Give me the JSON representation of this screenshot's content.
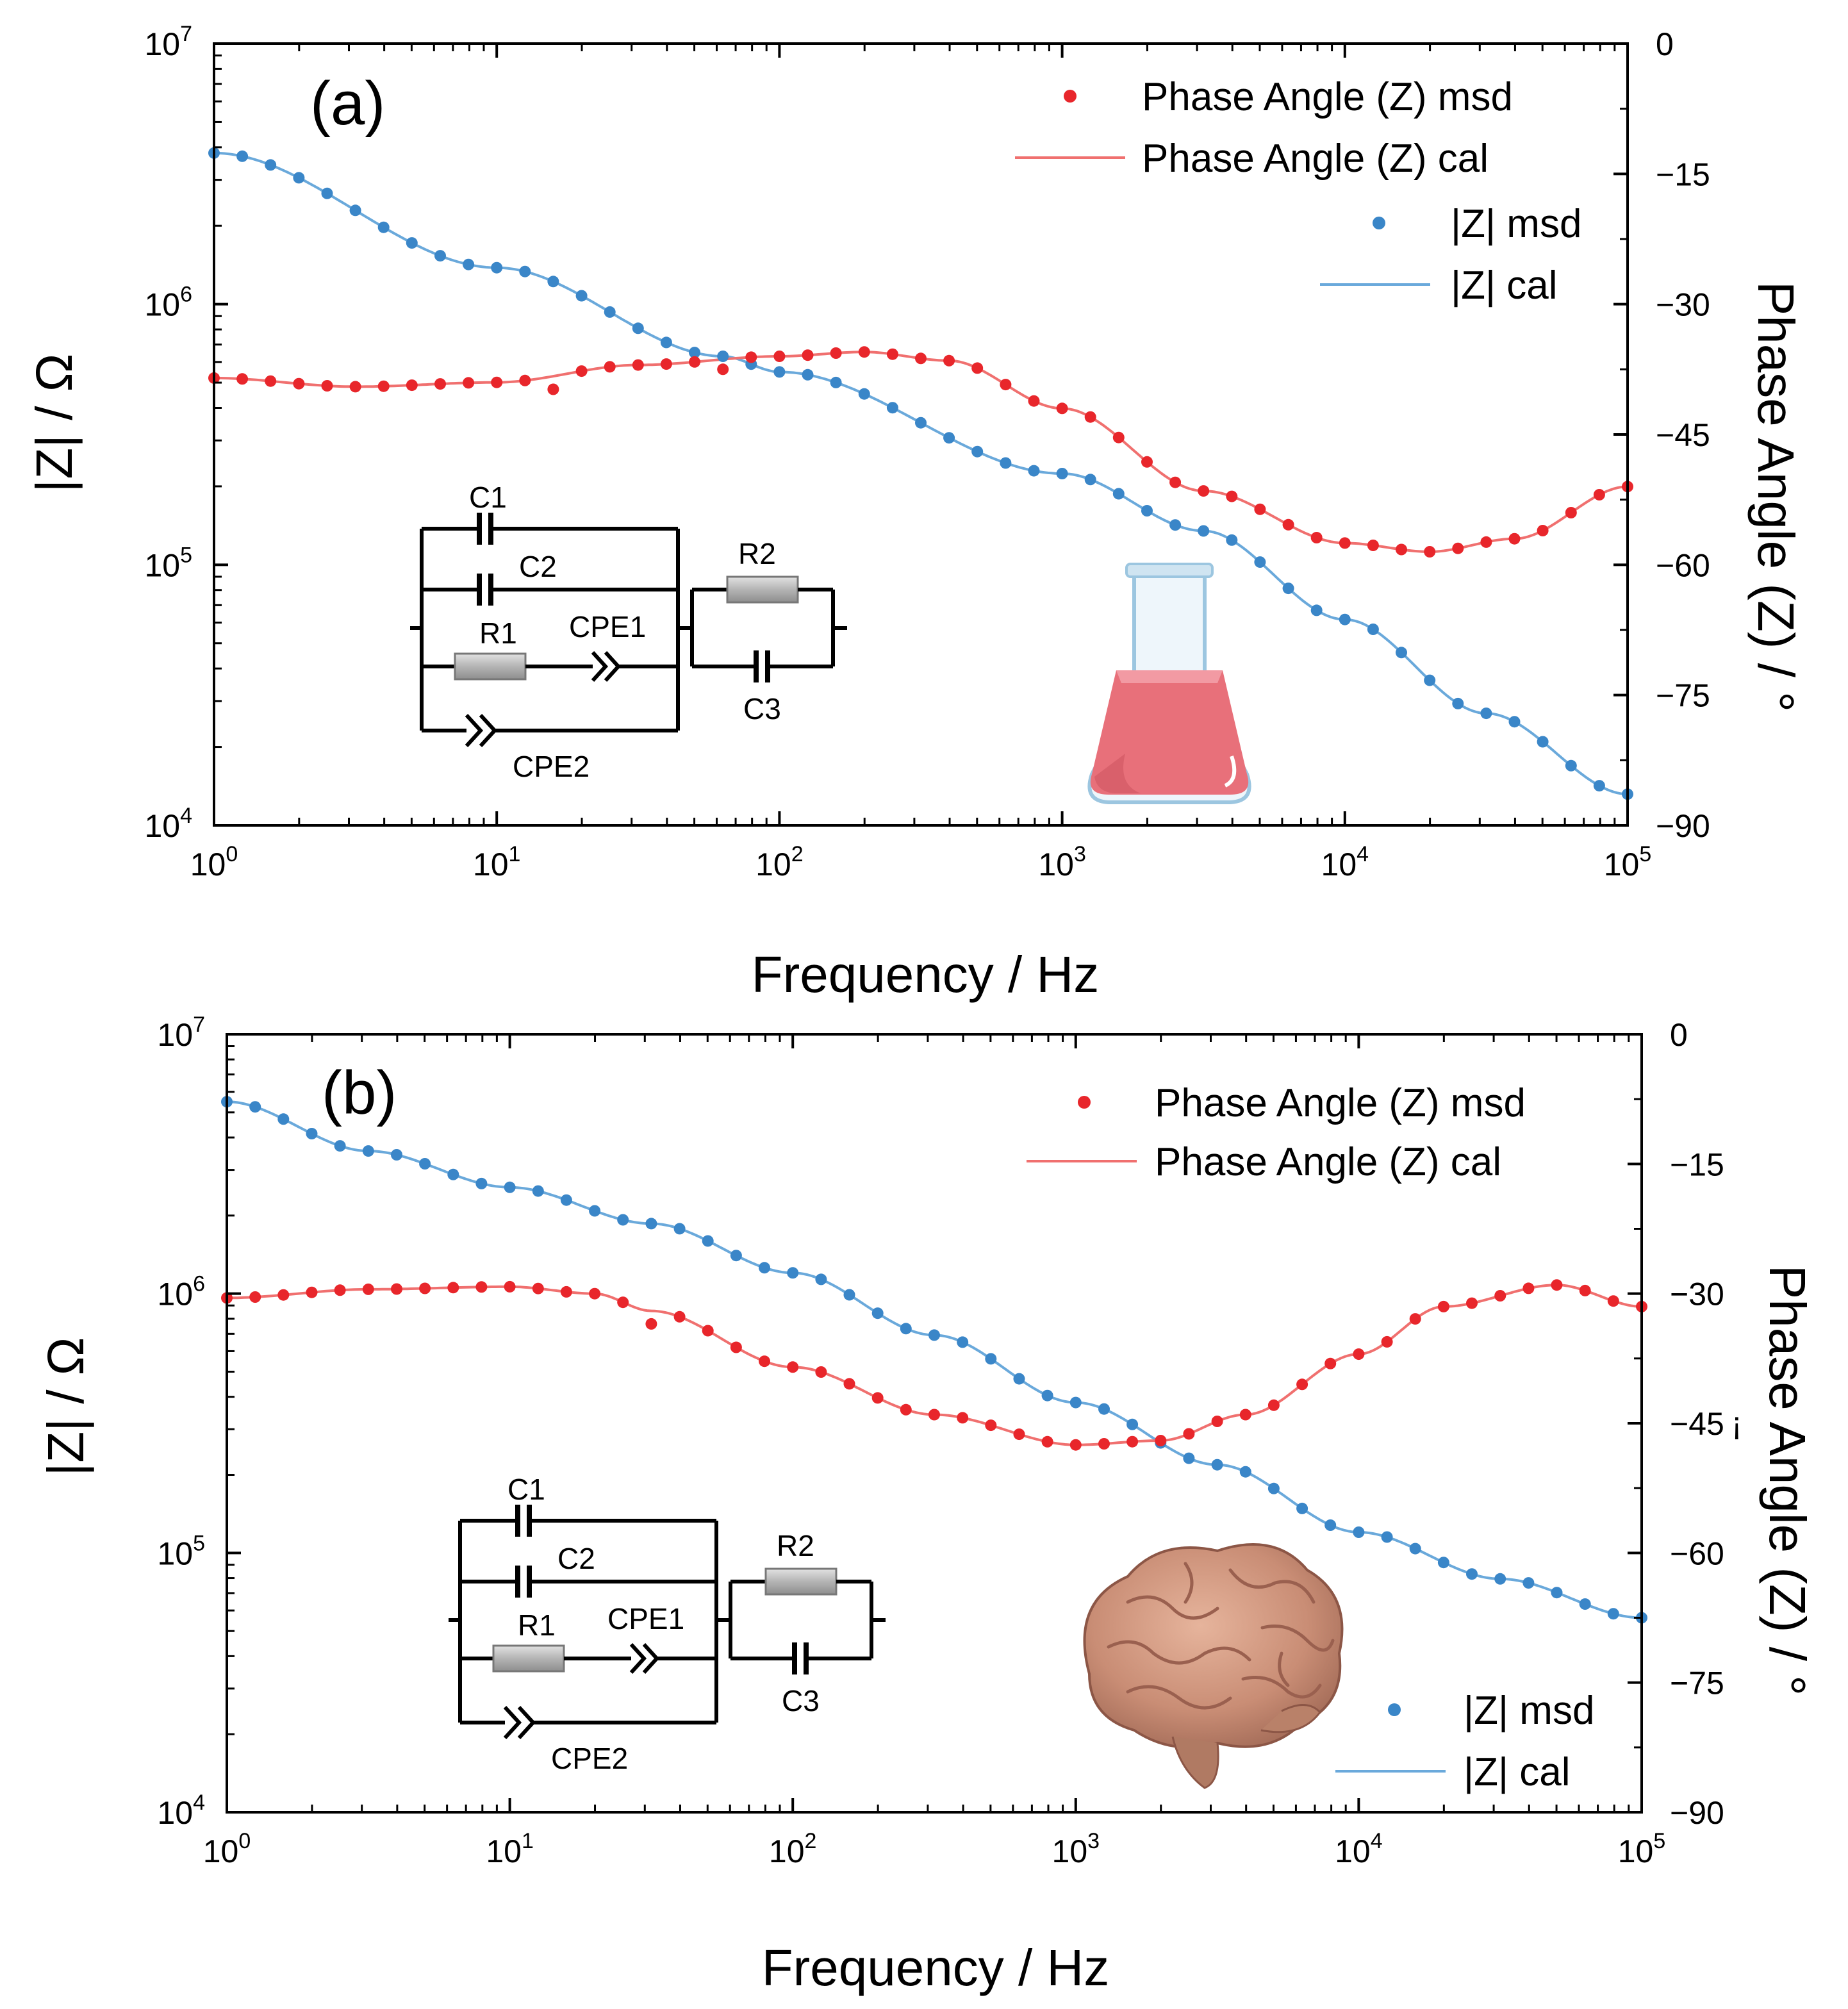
{
  "figure": {
    "colors": {
      "phase": "#e8262b",
      "phase_line": "#f0706f",
      "modulus": "#3a86c8",
      "modulus_line": "#6aa9db",
      "axis": "#000000"
    }
  },
  "chart_data": [
    {
      "type": "line",
      "panel_label": "(a)",
      "title": "",
      "xlabel": "Frequency / Hz",
      "ylabel": "|Z| / Ω",
      "y2label": "Phase Angle (Z) / °",
      "xscale": "log",
      "xlim": [
        1,
        100000
      ],
      "yscale": "log",
      "ylim": [
        10000,
        10000000
      ],
      "y2lim": [
        -90,
        0
      ],
      "x_ticks": [
        {
          "b": "10",
          "e": "0"
        },
        {
          "b": "10",
          "e": "1"
        },
        {
          "b": "10",
          "e": "2"
        },
        {
          "b": "10",
          "e": "3"
        },
        {
          "b": "10",
          "e": "4"
        },
        {
          "b": "10",
          "e": "5"
        }
      ],
      "y_ticks": [
        {
          "b": "10",
          "e": "4"
        },
        {
          "b": "10",
          "e": "5"
        },
        {
          "b": "10",
          "e": "6"
        },
        {
          "b": "10",
          "e": "7"
        }
      ],
      "y2_ticks": [
        "0",
        "−15",
        "−30",
        "−45",
        "−60",
        "−75",
        "−90"
      ],
      "legend_position": "top-right",
      "legend": [
        {
          "name": "Phase Angle (Z) msd",
          "kind": "marker",
          "color": "#e8262b"
        },
        {
          "name": "Phase Angle (Z)  cal",
          "kind": "line",
          "color": "#f0706f"
        },
        {
          "name": "|Z| msd",
          "kind": "marker",
          "color": "#3a86c8"
        },
        {
          "name": "|Z| cal",
          "kind": "line",
          "color": "#6aa9db"
        }
      ],
      "series": [
        {
          "name": "|Z|",
          "axis": "left",
          "knots_log_f": [
            0,
            1,
            1.8,
            2,
            3,
            3.5,
            4,
            4.5,
            5
          ],
          "knots_log_z": [
            6.58,
            6.14,
            5.8,
            5.74,
            5.35,
            5.13,
            4.79,
            4.43,
            4.12
          ]
        },
        {
          "name": "Phase Angle (Z)",
          "axis": "right",
          "knots_log_f": [
            0,
            0.5,
            1,
            1.5,
            2,
            2.3,
            2.6,
            3,
            3.5,
            4,
            4.3,
            4.6,
            5
          ],
          "knots_deg": [
            -38.5,
            -39.5,
            -39,
            -37,
            -36,
            -35.5,
            -36.5,
            -42,
            -51.5,
            -57.5,
            -58.5,
            -57,
            -51
          ]
        }
      ],
      "msd_points_per_decade": 10,
      "phase_outliers": [
        {
          "log_f": 1.2,
          "deg": -39.8
        },
        {
          "log_f": 1.8,
          "deg": -37.5
        }
      ],
      "circuit_labels": {
        "c1": "C1",
        "c2": "C2",
        "r1": "R1",
        "cpe1": "CPE1",
        "cpe2": "CPE2",
        "r2": "R2",
        "c3": "C3"
      },
      "illustration": "flask-icon"
    },
    {
      "type": "line",
      "panel_label": "(b)",
      "title": "",
      "xlabel": "Frequency / Hz",
      "ylabel": "|Z| / Ω",
      "y2label": "Phase Angle (Z) / °",
      "xscale": "log",
      "xlim": [
        1,
        100000
      ],
      "yscale": "log",
      "ylim": [
        10000,
        10000000
      ],
      "y2lim": [
        -90,
        0
      ],
      "x_ticks": [
        {
          "b": "10",
          "e": "0"
        },
        {
          "b": "10",
          "e": "1"
        },
        {
          "b": "10",
          "e": "2"
        },
        {
          "b": "10",
          "e": "3"
        },
        {
          "b": "10",
          "e": "4"
        },
        {
          "b": "10",
          "e": "5"
        }
      ],
      "y_ticks": [
        {
          "b": "10",
          "e": "4"
        },
        {
          "b": "10",
          "e": "5"
        },
        {
          "b": "10",
          "e": "6"
        },
        {
          "b": "10",
          "e": "7"
        }
      ],
      "y2_ticks": [
        "0",
        "−15",
        "−30",
        "−45",
        "−60",
        "−75",
        "−90"
      ],
      "y2_stray_glyph": "¡",
      "legend_top": [
        {
          "name": "Phase Angle (Z) msd",
          "kind": "marker",
          "color": "#e8262b"
        },
        {
          "name": "Phase Angle (Z) cal",
          "kind": "line",
          "color": "#f0706f"
        }
      ],
      "legend_bottom": [
        {
          "name": "|Z| msd",
          "kind": "marker",
          "color": "#3a86c8"
        },
        {
          "name": "|Z| cal",
          "kind": "line",
          "color": "#6aa9db"
        }
      ],
      "series": [
        {
          "name": "|Z|",
          "axis": "left",
          "knots_log_f": [
            0,
            0.5,
            1,
            1.5,
            2,
            2.5,
            3,
            3.5,
            4,
            4.5,
            5
          ],
          "knots_log_z": [
            6.74,
            6.55,
            6.41,
            6.27,
            6.08,
            5.84,
            5.58,
            5.34,
            5.08,
            4.9,
            4.75
          ]
        },
        {
          "name": "Phase Angle (Z)",
          "axis": "right",
          "knots_log_f": [
            0,
            0.5,
            1,
            1.3,
            1.5,
            2,
            2.5,
            3,
            3.3,
            3.6,
            4,
            4.3,
            4.7,
            5
          ],
          "knots_deg": [
            -30.5,
            -29.5,
            -29.2,
            -30,
            -32,
            -38.5,
            -44,
            -47.5,
            -47,
            -44,
            -37,
            -31.5,
            -29,
            -31.5
          ]
        }
      ],
      "msd_points_per_decade": 10,
      "phase_outliers": [
        {
          "log_f": 1.5,
          "deg": -33.5
        }
      ],
      "circuit_labels": {
        "c1": "C1",
        "c2": "C2",
        "r1": "R1",
        "cpe1": "CPE1",
        "cpe2": "CPE2",
        "r2": "R2",
        "c3": "C3"
      },
      "illustration": "brain-icon"
    }
  ]
}
